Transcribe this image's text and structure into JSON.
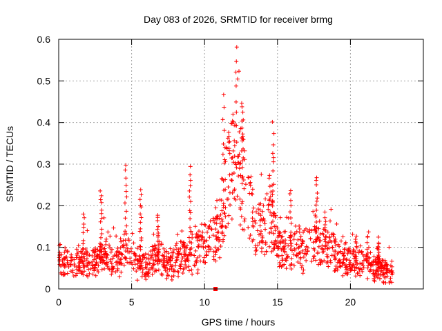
{
  "chart_data": {
    "type": "scatter",
    "title": "Day 083 of 2026, SRMTID for receiver brmg",
    "xlabel": "GPS time / hours",
    "ylabel": "SRMTID / TECUs",
    "xlim": [
      0,
      25
    ],
    "ylim": [
      0,
      0.6
    ],
    "xticks": [
      0,
      5,
      10,
      15,
      20
    ],
    "yticks": [
      0,
      0.1,
      0.2,
      0.3,
      0.4,
      0.5,
      0.6
    ],
    "xtick_labels": [
      "0",
      "5",
      "10",
      "15",
      "20"
    ],
    "ytick_labels": [
      "0",
      "0.1",
      "0.2",
      "0.3",
      "0.4",
      "0.5",
      "0.6"
    ],
    "grid": true,
    "marker": "+",
    "color": "#ff0000",
    "series": [
      {
        "name": "SRMTID",
        "approximate_profile": [
          {
            "t": 0.0,
            "y": 0.07
          },
          {
            "t": 0.5,
            "y": 0.06
          },
          {
            "t": 1.0,
            "y": 0.05
          },
          {
            "t": 1.5,
            "y": 0.07
          },
          {
            "t": 2.0,
            "y": 0.07
          },
          {
            "t": 2.5,
            "y": 0.06
          },
          {
            "t": 3.0,
            "y": 0.08
          },
          {
            "t": 3.5,
            "y": 0.07
          },
          {
            "t": 4.0,
            "y": 0.07
          },
          {
            "t": 4.5,
            "y": 0.09
          },
          {
            "t": 5.0,
            "y": 0.08
          },
          {
            "t": 5.5,
            "y": 0.06
          },
          {
            "t": 6.0,
            "y": 0.05
          },
          {
            "t": 6.5,
            "y": 0.07
          },
          {
            "t": 7.0,
            "y": 0.07
          },
          {
            "t": 7.5,
            "y": 0.06
          },
          {
            "t": 8.0,
            "y": 0.07
          },
          {
            "t": 8.5,
            "y": 0.08
          },
          {
            "t": 9.0,
            "y": 0.08
          },
          {
            "t": 9.5,
            "y": 0.09
          },
          {
            "t": 10.0,
            "y": 0.11
          },
          {
            "t": 10.5,
            "y": 0.12
          },
          {
            "t": 11.0,
            "y": 0.14
          },
          {
            "t": 11.5,
            "y": 0.25
          },
          {
            "t": 12.0,
            "y": 0.3
          },
          {
            "t": 12.5,
            "y": 0.28
          },
          {
            "t": 13.0,
            "y": 0.2
          },
          {
            "t": 13.5,
            "y": 0.15
          },
          {
            "t": 14.0,
            "y": 0.14
          },
          {
            "t": 14.5,
            "y": 0.2
          },
          {
            "t": 15.0,
            "y": 0.1
          },
          {
            "t": 15.5,
            "y": 0.09
          },
          {
            "t": 16.0,
            "y": 0.1
          },
          {
            "t": 16.5,
            "y": 0.1
          },
          {
            "t": 17.0,
            "y": 0.09
          },
          {
            "t": 17.5,
            "y": 0.12
          },
          {
            "t": 18.0,
            "y": 0.1
          },
          {
            "t": 18.5,
            "y": 0.1
          },
          {
            "t": 19.0,
            "y": 0.09
          },
          {
            "t": 19.5,
            "y": 0.08
          },
          {
            "t": 20.0,
            "y": 0.06
          },
          {
            "t": 20.5,
            "y": 0.06
          },
          {
            "t": 21.0,
            "y": 0.07
          },
          {
            "t": 21.5,
            "y": 0.05
          },
          {
            "t": 22.0,
            "y": 0.05
          },
          {
            "t": 22.5,
            "y": 0.04
          },
          {
            "t": 22.9,
            "y": 0.04
          }
        ],
        "spikes": [
          {
            "t": 1.7,
            "y": 0.18
          },
          {
            "t": 2.9,
            "y": 0.24
          },
          {
            "t": 4.6,
            "y": 0.3
          },
          {
            "t": 5.6,
            "y": 0.24
          },
          {
            "t": 6.8,
            "y": 0.18
          },
          {
            "t": 9.0,
            "y": 0.29
          },
          {
            "t": 11.3,
            "y": 0.47
          },
          {
            "t": 12.2,
            "y": 0.58
          },
          {
            "t": 12.6,
            "y": 0.45
          },
          {
            "t": 14.7,
            "y": 0.4
          },
          {
            "t": 15.9,
            "y": 0.24
          },
          {
            "t": 17.7,
            "y": 0.27
          },
          {
            "t": 18.3,
            "y": 0.18
          },
          {
            "t": 20.4,
            "y": 0.13
          },
          {
            "t": 21.2,
            "y": 0.14
          },
          {
            "t": 21.9,
            "y": 0.12
          }
        ],
        "time_range_hours": [
          0.0,
          22.9
        ],
        "approx_point_count": 1300
      }
    ],
    "annotations": [
      {
        "type": "square-marker",
        "x": 10.75,
        "y": 0.0
      }
    ]
  }
}
